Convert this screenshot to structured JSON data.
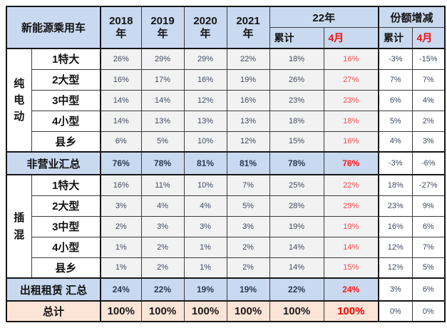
{
  "colors": {
    "header_bg": "#c9d9f0",
    "summary_bg": "#c9d9f0",
    "total_bg": "#fce4d6",
    "data_cell_bg": "#f2f2f2",
    "value_text": "#3f4a5f",
    "highlight_red": "#ff0000",
    "border": "#161616"
  },
  "chart_data": {
    "type": "table",
    "corner_title": "新能源乘用车",
    "years": [
      {
        "num": "2018",
        "unit": "年"
      },
      {
        "num": "2019",
        "unit": "年"
      },
      {
        "num": "2020",
        "unit": "年"
      },
      {
        "num": "2021",
        "unit": "年"
      }
    ],
    "col_group_22": "22年",
    "col_group_share": "份额增减",
    "sub_cum": "累计",
    "sub_apr": "4月",
    "value_columns": [
      "2018年",
      "2019年",
      "2020年",
      "2021年",
      "22年累计",
      "22年4月",
      "份额增减累计",
      "份额增减4月"
    ],
    "groups": [
      {
        "label": "纯电动",
        "start": 0,
        "span": 5
      },
      {
        "label": "插混",
        "start": 6,
        "span": 5
      }
    ],
    "rows": [
      {
        "kind": "data",
        "label": "1特大",
        "values": [
          "26%",
          "29%",
          "29%",
          "22%",
          "18%",
          "16%",
          "-3%",
          "-15%"
        ]
      },
      {
        "kind": "data",
        "label": "2大型",
        "values": [
          "16%",
          "17%",
          "16%",
          "19%",
          "26%",
          "27%",
          "7%",
          "7%"
        ]
      },
      {
        "kind": "data",
        "label": "3中型",
        "values": [
          "14%",
          "14%",
          "12%",
          "16%",
          "23%",
          "23%",
          "6%",
          "4%"
        ]
      },
      {
        "kind": "data",
        "label": "4小型",
        "values": [
          "14%",
          "13%",
          "13%",
          "13%",
          "18%",
          "18%",
          "5%",
          "2%"
        ]
      },
      {
        "kind": "data",
        "label": "县乡",
        "values": [
          "6%",
          "5%",
          "10%",
          "12%",
          "15%",
          "16%",
          "4%",
          "3%"
        ]
      },
      {
        "kind": "summary",
        "label": "非营业汇总",
        "values": [
          "76%",
          "78%",
          "81%",
          "81%",
          "78%",
          "76%",
          "-3%",
          "-6%"
        ]
      },
      {
        "kind": "data",
        "label": "1特大",
        "values": [
          "16%",
          "11%",
          "10%",
          "7%",
          "25%",
          "22%",
          "18%",
          "-27%"
        ]
      },
      {
        "kind": "data",
        "label": "2大型",
        "values": [
          "3%",
          "4%",
          "4%",
          "5%",
          "28%",
          "29%",
          "23%",
          "9%"
        ]
      },
      {
        "kind": "data",
        "label": "3中型",
        "values": [
          "2%",
          "3%",
          "3%",
          "3%",
          "19%",
          "19%",
          "16%",
          "6%"
        ]
      },
      {
        "kind": "data",
        "label": "4小型",
        "values": [
          "1%",
          "2%",
          "1%",
          "2%",
          "14%",
          "14%",
          "12%",
          "7%"
        ]
      },
      {
        "kind": "data",
        "label": "县乡",
        "values": [
          "1%",
          "2%",
          "1%",
          "2%",
          "14%",
          "15%",
          "12%",
          "5%"
        ]
      },
      {
        "kind": "summary",
        "label": "出租租赁 汇总",
        "values": [
          "24%",
          "22%",
          "19%",
          "19%",
          "22%",
          "24%",
          "3%",
          "6%"
        ]
      },
      {
        "kind": "total",
        "label": "总计",
        "values": [
          "100%",
          "100%",
          "100%",
          "100%",
          "100%",
          "100%",
          "0%",
          "0%"
        ]
      }
    ]
  }
}
